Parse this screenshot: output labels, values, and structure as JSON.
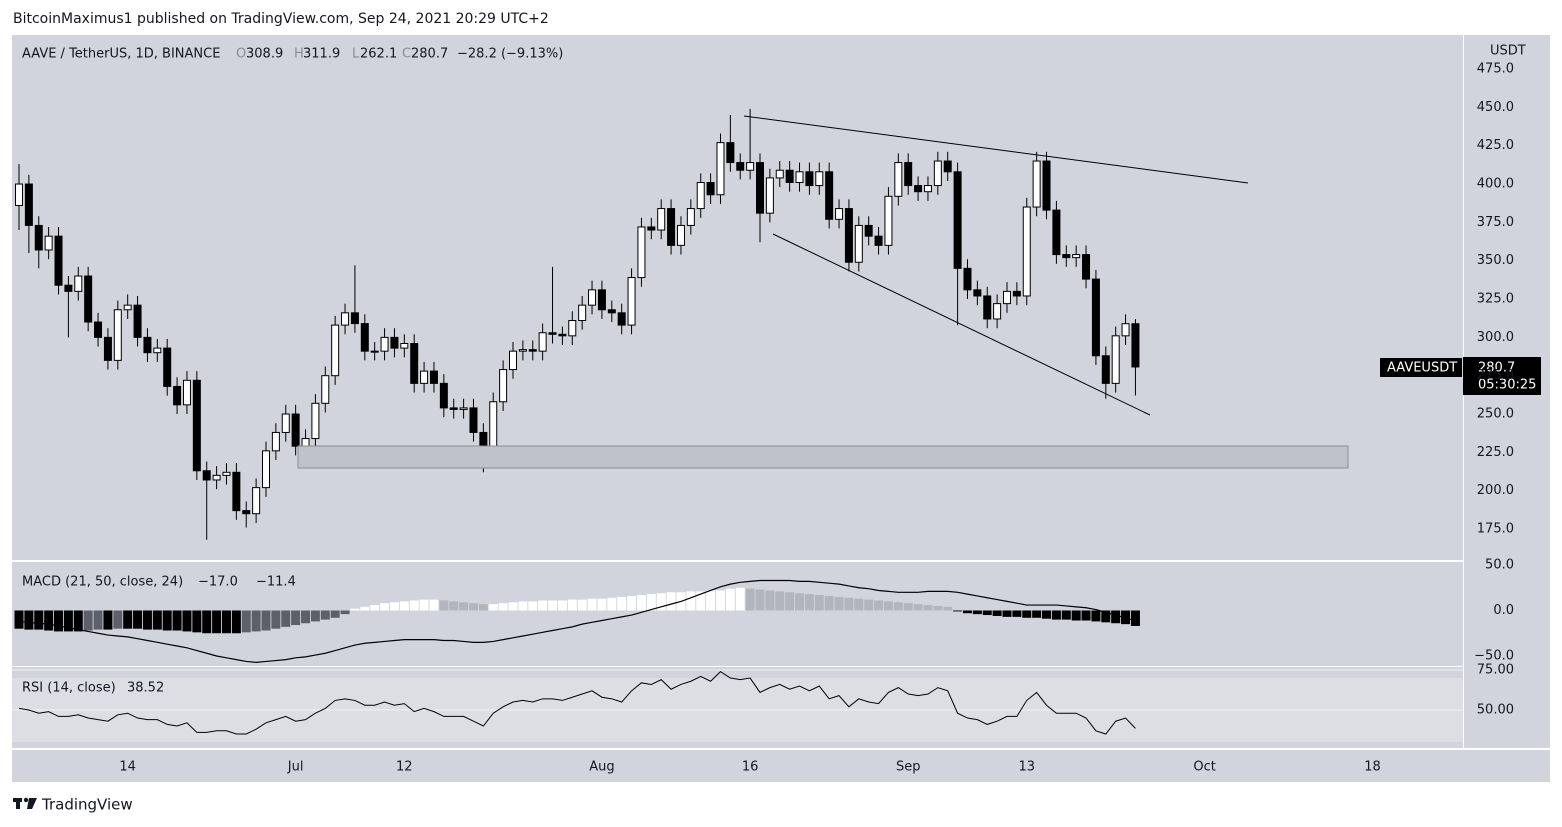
{
  "header": "BitcoinMaximus1 published on TradingView.com, Sep 24, 2021 20:29 UTC+2",
  "footer": "TradingView",
  "chart_data": [
    {
      "type": "candlestick",
      "title": "AAVE / TetherUS, 1D, BINANCE",
      "ohlc_letters": [
        "O",
        "H",
        "L",
        "C"
      ],
      "change_text": "−28.2 (−9.13%)",
      "axis_unit": "USDT",
      "symbol": "AAVEUSDT",
      "countdown": "05:30:25",
      "x": [
        "06-03",
        "06-04",
        "06-05",
        "06-06",
        "06-07",
        "06-08",
        "06-09",
        "06-10",
        "06-11",
        "06-12",
        "06-13",
        "06-14",
        "06-15",
        "06-16",
        "06-17",
        "06-18",
        "06-19",
        "06-20",
        "06-21",
        "06-22",
        "06-23",
        "06-24",
        "06-25",
        "06-26",
        "06-27",
        "06-28",
        "06-29",
        "06-30",
        "07-01",
        "07-02",
        "07-03",
        "07-04",
        "07-05",
        "07-06",
        "07-07",
        "07-08",
        "07-09",
        "07-10",
        "07-11",
        "07-12",
        "07-13",
        "07-14",
        "07-15",
        "07-16",
        "07-17",
        "07-18",
        "07-19",
        "07-20",
        "07-21",
        "07-22",
        "07-23",
        "07-24",
        "07-25",
        "07-26",
        "07-27",
        "07-28",
        "07-29",
        "07-30",
        "07-31",
        "08-01",
        "08-02",
        "08-03",
        "08-04",
        "08-05",
        "08-06",
        "08-07",
        "08-08",
        "08-09",
        "08-10",
        "08-11",
        "08-12",
        "08-13",
        "08-14",
        "08-15",
        "08-16",
        "08-17",
        "08-18",
        "08-19",
        "08-20",
        "08-21",
        "08-22",
        "08-23",
        "08-24",
        "08-25",
        "08-26",
        "08-27",
        "08-28",
        "08-29",
        "08-30",
        "08-31",
        "09-01",
        "09-02",
        "09-03",
        "09-04",
        "09-05",
        "09-06",
        "09-07",
        "09-08",
        "09-09",
        "09-10",
        "09-11",
        "09-12",
        "09-13",
        "09-14",
        "09-15",
        "09-16",
        "09-17",
        "09-18",
        "09-19",
        "09-20",
        "09-21",
        "09-22",
        "09-23",
        "09-24"
      ],
      "xticks": [
        {
          "value": "06-14",
          "label": "14"
        },
        {
          "value": "07-01",
          "label": "Jul"
        },
        {
          "value": "07-12",
          "label": "12"
        },
        {
          "value": "08-01",
          "label": "Aug"
        },
        {
          "value": "08-16",
          "label": "16"
        },
        {
          "value": "09-01",
          "label": "Sep"
        },
        {
          "value": "09-13",
          "label": "13"
        },
        {
          "value": "10-01",
          "label": "Oct"
        },
        {
          "value": "10-18",
          "label": "18"
        }
      ],
      "open": [
        386,
        400,
        373,
        357,
        366,
        334,
        330,
        340,
        310,
        300,
        285,
        318,
        321,
        300,
        290,
        293,
        268,
        256,
        272,
        213,
        207,
        210,
        212,
        187,
        185,
        202,
        226,
        238,
        250,
        229,
        234,
        257,
        275,
        308,
        316,
        309,
        291,
        291,
        300,
        293,
        296,
        270,
        278,
        270,
        254,
        253,
        254,
        238,
        223,
        258,
        279,
        291,
        292,
        291,
        303,
        302,
        301,
        311,
        321,
        331,
        318,
        316,
        308,
        339,
        372,
        370,
        384,
        360,
        373,
        384,
        401,
        393,
        427,
        414,
        409,
        414,
        381,
        404,
        409,
        401,
        408,
        399,
        408,
        377,
        384,
        349,
        373,
        366,
        360,
        392,
        414,
        399,
        395,
        399,
        415,
        408,
        345,
        331,
        327,
        312,
        322,
        330,
        327,
        385,
        415,
        383,
        354,
        352,
        354,
        338,
        288,
        270,
        301,
        308.9
      ],
      "high": [
        413,
        406,
        379,
        372,
        372,
        340,
        346,
        346,
        316,
        306,
        324,
        328,
        327,
        306,
        299,
        299,
        274,
        278,
        278,
        219,
        216,
        218,
        218,
        193,
        208,
        232,
        244,
        256,
        256,
        240,
        263,
        281,
        314,
        322,
        347,
        315,
        297,
        306,
        306,
        302,
        302,
        284,
        284,
        276,
        260,
        260,
        260,
        244,
        264,
        285,
        297,
        298,
        298,
        309,
        346,
        307,
        317,
        327,
        337,
        337,
        324,
        322,
        345,
        378,
        378,
        390,
        390,
        379,
        390,
        407,
        407,
        433,
        445,
        420,
        449,
        420,
        410,
        415,
        415,
        414,
        414,
        414,
        414,
        390,
        390,
        379,
        379,
        372,
        398,
        420,
        420,
        405,
        405,
        421,
        421,
        414,
        351,
        337,
        333,
        328,
        336,
        336,
        391,
        421,
        421,
        389,
        360,
        360,
        360,
        344,
        294,
        307,
        315,
        311.9
      ],
      "low": [
        370,
        355,
        345,
        351,
        328,
        300,
        324,
        304,
        294,
        279,
        279,
        312,
        294,
        284,
        284,
        262,
        250,
        250,
        207,
        168,
        201,
        204,
        181,
        176,
        179,
        196,
        220,
        232,
        223,
        223,
        228,
        251,
        269,
        302,
        303,
        285,
        285,
        285,
        287,
        287,
        264,
        264,
        264,
        248,
        247,
        247,
        232,
        212,
        217,
        252,
        273,
        285,
        285,
        285,
        296,
        295,
        295,
        305,
        315,
        312,
        310,
        302,
        302,
        333,
        364,
        364,
        354,
        354,
        367,
        378,
        387,
        387,
        408,
        403,
        403,
        362,
        375,
        398,
        395,
        395,
        393,
        393,
        371,
        371,
        343,
        343,
        360,
        354,
        354,
        386,
        393,
        389,
        389,
        393,
        402,
        308,
        325,
        321,
        306,
        306,
        316,
        321,
        321,
        379,
        377,
        348,
        346,
        346,
        332,
        282,
        260,
        264,
        295,
        262.1
      ],
      "close": [
        400,
        373,
        357,
        366,
        334,
        330,
        340,
        310,
        300,
        285,
        318,
        321,
        300,
        290,
        293,
        268,
        256,
        272,
        213,
        207,
        210,
        212,
        187,
        185,
        202,
        226,
        238,
        250,
        229,
        234,
        257,
        275,
        308,
        316,
        309,
        291,
        291,
        300,
        293,
        296,
        270,
        278,
        270,
        254,
        253,
        254,
        238,
        223,
        258,
        279,
        291,
        292,
        291,
        303,
        302,
        301,
        311,
        321,
        331,
        318,
        316,
        308,
        339,
        372,
        370,
        384,
        360,
        373,
        384,
        401,
        393,
        427,
        414,
        409,
        414,
        381,
        404,
        409,
        401,
        408,
        399,
        408,
        377,
        384,
        349,
        373,
        366,
        360,
        392,
        414,
        399,
        395,
        399,
        415,
        408,
        345,
        331,
        327,
        312,
        322,
        330,
        327,
        385,
        415,
        383,
        354,
        352,
        354,
        338,
        288,
        270,
        301,
        308.9,
        280.7
      ],
      "up_color": "#ffffff",
      "down_color": "#000000",
      "ylim": [
        154.8,
        497.2
      ],
      "yticks": [
        {
          "value": 175,
          "label": "175.0"
        },
        {
          "value": 200,
          "label": "200.0"
        },
        {
          "value": 225,
          "label": "225.0"
        },
        {
          "value": 250,
          "label": "250.0"
        },
        {
          "value": 275,
          "label": "275.0"
        },
        {
          "value": 300,
          "label": "300.0"
        },
        {
          "value": 325,
          "label": "325.0"
        },
        {
          "value": 350,
          "label": "350.0"
        },
        {
          "value": 375,
          "label": "375.0"
        },
        {
          "value": 400,
          "label": "400.0"
        },
        {
          "value": 425,
          "label": "425.0"
        },
        {
          "value": 450,
          "label": "450.0"
        },
        {
          "value": 475,
          "label": "475.0"
        }
      ]
    },
    {
      "type": "macd",
      "title": "MACD (21, 50, close, 24)",
      "readout": [
        "−17.0",
        "−11.4"
      ],
      "histogram": [
        -20,
        -21,
        -21,
        -22,
        -23,
        -23,
        -23,
        -22,
        -21,
        -21,
        -20,
        -20,
        -20,
        -21,
        -21,
        -22,
        -22,
        -23,
        -24,
        -25,
        -25,
        -25,
        -25,
        -24,
        -23,
        -22,
        -20,
        -18,
        -16,
        -14,
        -12,
        -10,
        -8,
        -4,
        2,
        4,
        6,
        8,
        9,
        10,
        11,
        12,
        12,
        11,
        10,
        9,
        8,
        7,
        7,
        8,
        9,
        10,
        10,
        11,
        11,
        11,
        12,
        12,
        13,
        13,
        14,
        15,
        16,
        17,
        18,
        19,
        20,
        20,
        21,
        21,
        22,
        22,
        24,
        25,
        24,
        23,
        22,
        21,
        20,
        19,
        18,
        17,
        16,
        15,
        14,
        13,
        12,
        11,
        10,
        9,
        8,
        7,
        6,
        5,
        4,
        -1,
        -3,
        -4,
        -5,
        -6,
        -7,
        -7,
        -8,
        -8,
        -9,
        -10,
        -10,
        -11,
        -11,
        -12,
        -13,
        -14,
        -15,
        -17
      ],
      "macd": [
        -12,
        -13,
        -14,
        -15,
        -17,
        -19,
        -21,
        -23,
        -25,
        -27,
        -28,
        -29,
        -31,
        -33,
        -35,
        -37,
        -39,
        -41,
        -44,
        -47,
        -50,
        -52,
        -54,
        -56,
        -57,
        -56,
        -55,
        -54,
        -52,
        -51,
        -49,
        -47,
        -44,
        -41,
        -38,
        -36,
        -35,
        -34,
        -33,
        -32,
        -32,
        -32,
        -32,
        -33,
        -33,
        -34,
        -35,
        -35,
        -34,
        -32,
        -30,
        -28,
        -26,
        -24,
        -22,
        -20,
        -18,
        -15,
        -13,
        -11,
        -9,
        -7,
        -5,
        -2,
        1,
        4,
        7,
        10,
        14,
        18,
        22,
        26,
        29,
        31,
        32,
        33,
        33,
        33,
        33,
        32,
        32,
        31,
        30,
        29,
        27,
        25,
        24,
        22,
        21,
        20,
        20,
        20,
        21,
        21,
        21,
        20,
        18,
        16,
        14,
        12,
        10,
        8,
        6,
        6,
        6,
        6,
        5,
        4,
        3,
        1,
        -2,
        -5,
        -8,
        -11.4
      ],
      "histogram_colors": [
        "#ffffff",
        "#b2b5be",
        "#5d606b",
        "#000000"
      ],
      "line_color": "#000000",
      "ylim": [
        -61,
        53.3
      ],
      "yticks": [
        {
          "value": 50,
          "label": "50.0"
        },
        {
          "value": 0,
          "label": "0.0"
        },
        {
          "value": -50,
          "label": "−50.0"
        }
      ]
    },
    {
      "type": "line",
      "title": "RSI (14, close)",
      "values": [
        51,
        50,
        48,
        49,
        46,
        46,
        47,
        45,
        44,
        43,
        47,
        48,
        45,
        44,
        44,
        41,
        40,
        42,
        36,
        36,
        37,
        37,
        35,
        35,
        38,
        42,
        44,
        46,
        43,
        44,
        48,
        51,
        56,
        57,
        56,
        53,
        53,
        55,
        53,
        54,
        49,
        51,
        49,
        46,
        46,
        46,
        43,
        40,
        48,
        52,
        55,
        56,
        55,
        57,
        57,
        56,
        58,
        60,
        62,
        58,
        57,
        55,
        62,
        67,
        66,
        69,
        63,
        66,
        68,
        71,
        68,
        74,
        70,
        69,
        70,
        61,
        64,
        66,
        63,
        65,
        62,
        65,
        57,
        59,
        52,
        57,
        55,
        54,
        61,
        64,
        60,
        59,
        60,
        64,
        62,
        48,
        45,
        44,
        41,
        43,
        46,
        46,
        56,
        61,
        53,
        48,
        48,
        48,
        45,
        37,
        35,
        43,
        45,
        38.52
      ],
      "color": "#000000",
      "band": [
        30,
        70
      ],
      "band_color": "#dcdee4",
      "ylim": [
        26.25,
        76.9
      ],
      "yticks": [
        {
          "value": 75,
          "label": "75.00"
        },
        {
          "value": 50,
          "label": "50.00"
        }
      ],
      "grid": true
    }
  ]
}
